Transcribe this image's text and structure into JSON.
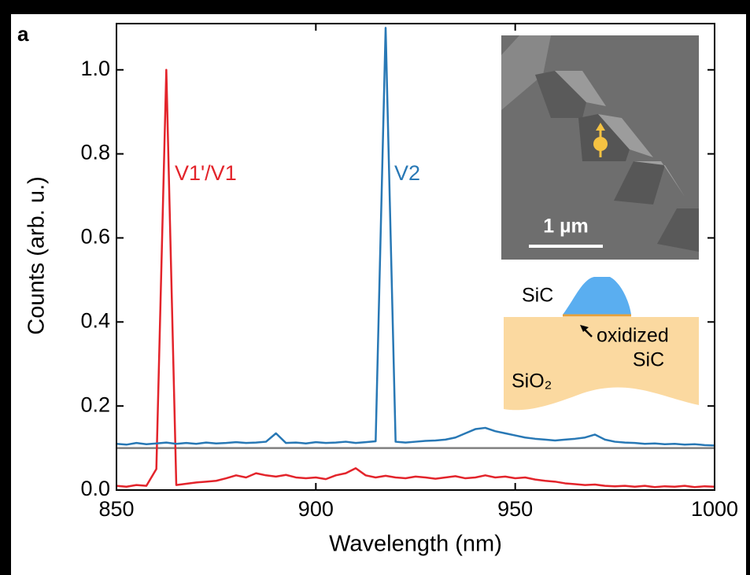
{
  "chart_data": {
    "type": "line",
    "panel_label": "a",
    "x_label": "Wavelength (nm)",
    "y_label": "Counts (arb. u.)",
    "xlim": [
      850,
      1000
    ],
    "xticks": [
      850,
      900,
      950,
      1000
    ],
    "ylim": [
      0,
      1.11
    ],
    "yticks": [
      {
        "value": 0,
        "label": "0.0"
      },
      {
        "value": 0.2,
        "label": "0.2"
      },
      {
        "value": 0.4,
        "label": "0.4"
      },
      {
        "value": 0.6,
        "label": "0.6"
      },
      {
        "value": 0.8,
        "label": "0.8"
      },
      {
        "value": 1.0,
        "label": "1.0"
      }
    ],
    "reference_line": {
      "value": 0.1,
      "color": "#808080"
    },
    "x": [
      850,
      852.5,
      855,
      857.5,
      860,
      862.5,
      865,
      867.5,
      870,
      872.5,
      875,
      877.5,
      880,
      882.5,
      885,
      887.5,
      890,
      892.5,
      895,
      897.5,
      900,
      902.5,
      905,
      907.5,
      910,
      912.5,
      915,
      917.5,
      920,
      922.5,
      925,
      927.5,
      930,
      932.5,
      935,
      937.5,
      940,
      942.5,
      945,
      947.5,
      950,
      952.5,
      955,
      957.5,
      960,
      962.5,
      965,
      967.5,
      970,
      972.5,
      975,
      977.5,
      980,
      982.5,
      985,
      987.5,
      990,
      992.5,
      995,
      997.5,
      1000
    ],
    "series": [
      {
        "name": "V1'/V1",
        "color": "#e3242b",
        "values": [
          0.01,
          0.008,
          0.012,
          0.01,
          0.05,
          1.0,
          0.012,
          0.015,
          0.018,
          0.02,
          0.022,
          0.028,
          0.035,
          0.03,
          0.04,
          0.035,
          0.032,
          0.036,
          0.03,
          0.028,
          0.03,
          0.026,
          0.035,
          0.04,
          0.052,
          0.035,
          0.03,
          0.034,
          0.03,
          0.028,
          0.032,
          0.03,
          0.027,
          0.03,
          0.033,
          0.028,
          0.03,
          0.035,
          0.03,
          0.032,
          0.028,
          0.03,
          0.025,
          0.022,
          0.02,
          0.016,
          0.014,
          0.012,
          0.013,
          0.01,
          0.009,
          0.01,
          0.008,
          0.01,
          0.007,
          0.009,
          0.008,
          0.01,
          0.007,
          0.009,
          0.008
        ]
      },
      {
        "name": "V2",
        "color": "#2878b5",
        "values": [
          0.11,
          0.108,
          0.112,
          0.109,
          0.111,
          0.113,
          0.11,
          0.112,
          0.11,
          0.113,
          0.111,
          0.112,
          0.114,
          0.112,
          0.113,
          0.115,
          0.135,
          0.112,
          0.113,
          0.111,
          0.114,
          0.112,
          0.113,
          0.115,
          0.112,
          0.114,
          0.116,
          1.1,
          0.115,
          0.113,
          0.115,
          0.117,
          0.118,
          0.12,
          0.125,
          0.135,
          0.145,
          0.148,
          0.14,
          0.135,
          0.13,
          0.125,
          0.122,
          0.12,
          0.118,
          0.12,
          0.122,
          0.125,
          0.132,
          0.12,
          0.115,
          0.113,
          0.112,
          0.11,
          0.111,
          0.109,
          0.11,
          0.108,
          0.109,
          0.107,
          0.106
        ]
      }
    ],
    "inset": {
      "scale_bar": "1 µm",
      "dome_label": "SiC",
      "interface_label": "oxidized",
      "interface_label_2": "SiC",
      "substrate_label": "SiO₂"
    }
  }
}
